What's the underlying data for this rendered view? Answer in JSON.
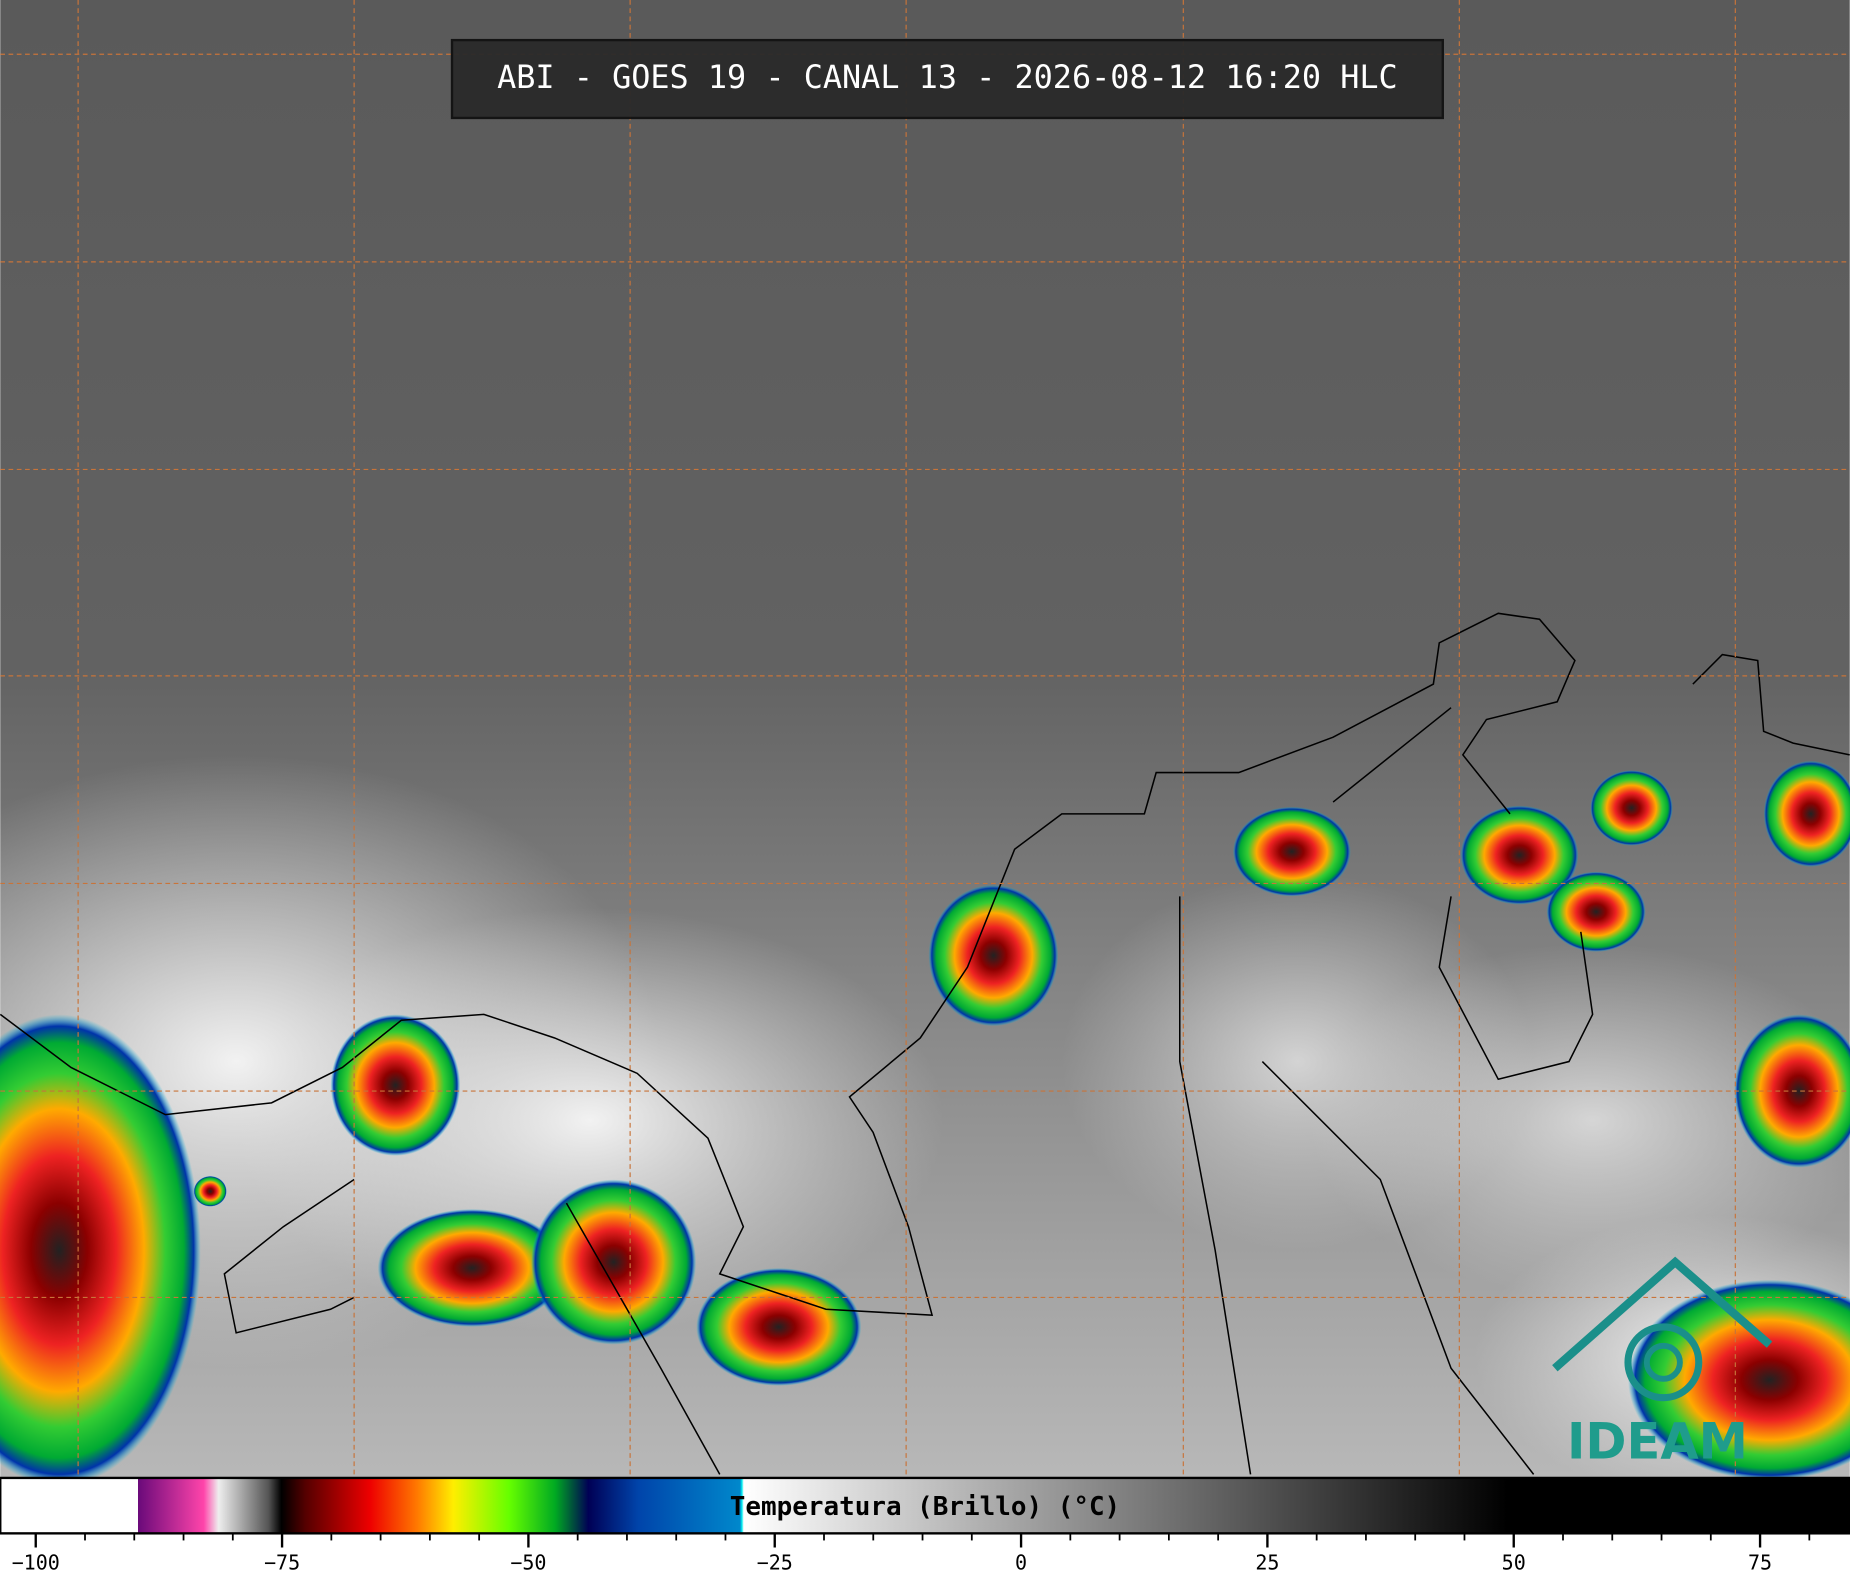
{
  "header": {
    "title": "ABI - GOES 19 - CANAL 13 - 2026-08-12 16:20 HLC"
  },
  "logo": "IDEAM",
  "colorbar": {
    "label": "Temperatura (Brillo) (°C)",
    "range": [
      -103.6,
      84.1
    ],
    "ticks": [
      {
        "value": -100,
        "label": "−100"
      },
      {
        "value": -75,
        "label": "−75"
      },
      {
        "value": -50,
        "label": "−50"
      },
      {
        "value": -25,
        "label": "−25"
      },
      0,
      25,
      50,
      75
    ],
    "minor_ticks": [
      -95,
      -90,
      -85,
      -80,
      -70,
      -65,
      -60,
      -55,
      -45,
      -40,
      -35,
      -30,
      -20,
      -15,
      -10,
      -5,
      5,
      10,
      15,
      20,
      30,
      35,
      40,
      45,
      55,
      60,
      65,
      70,
      80
    ]
  }
}
